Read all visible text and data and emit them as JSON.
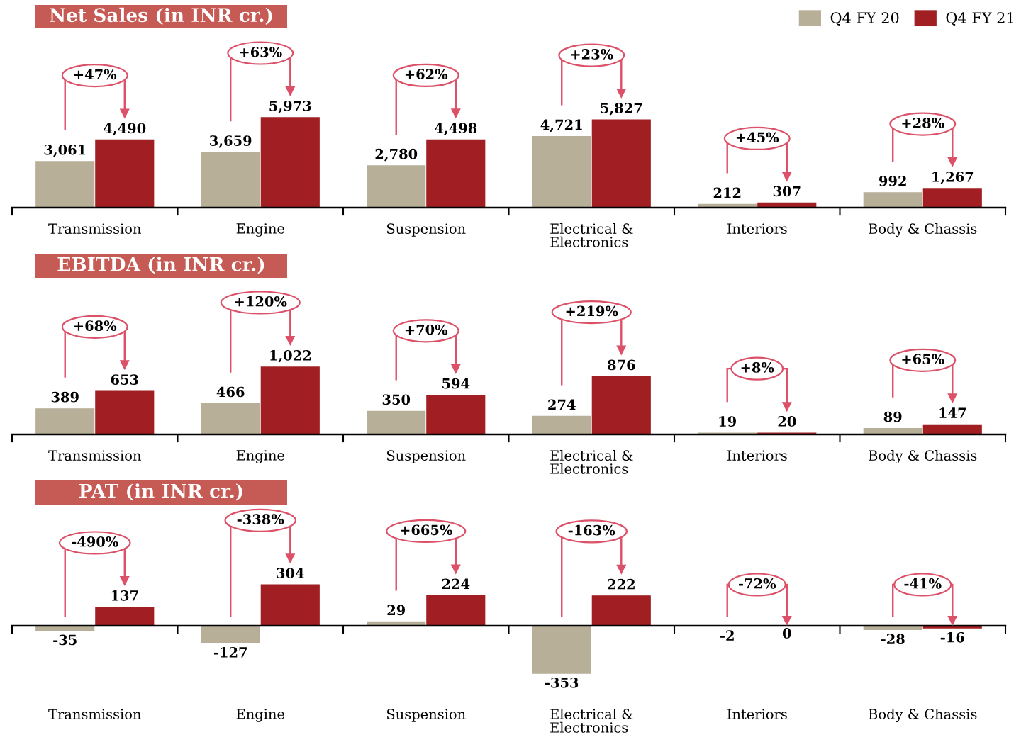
{
  "chart_data": [
    {
      "type": "bar",
      "title": "Net Sales (in INR cr.)",
      "categories": [
        "Transmission",
        "Engine",
        "Suspension",
        "Electrical &\nElectronics",
        "Interiors",
        "Body & Chassis"
      ],
      "series": [
        {
          "name": "Q4 FY 20",
          "color": "#b7af98",
          "values": [
            3061,
            3659,
            2780,
            4721,
            212,
            992
          ],
          "value_labels": [
            "3,061",
            "3,659",
            "2,780",
            "4,721",
            "212",
            "992"
          ]
        },
        {
          "name": "Q4 FY 21",
          "color": "#a11f22",
          "values": [
            4490,
            5973,
            4498,
            5827,
            307,
            1267
          ],
          "value_labels": [
            "4,490",
            "5,973",
            "4,498",
            "5,827",
            "307",
            "1,267"
          ]
        }
      ],
      "legend": "top right",
      "tick_labels": "x",
      "annotations": [
        "+47%",
        "+63%",
        "+62%",
        "+23%",
        "+45%",
        "+28%"
      ]
    },
    {
      "type": "bar",
      "title": "EBITDA (in INR cr.)",
      "categories": [
        "Transmission",
        "Engine",
        "Suspension",
        "Electrical &\nElectronics",
        "Interiors",
        "Body & Chassis"
      ],
      "series": [
        {
          "color": "#b7af98",
          "values": [
            389,
            466,
            350,
            274,
            19,
            89
          ],
          "value_labels": [
            "389",
            "466",
            "350",
            "274",
            "19",
            "89"
          ]
        },
        {
          "color": "#a11f22",
          "values": [
            653,
            1022,
            594,
            876,
            20,
            147
          ],
          "value_labels": [
            "653",
            "1,022",
            "594",
            "876",
            "20",
            "147"
          ]
        }
      ],
      "tick_labels": "x",
      "annotations": [
        "+68%",
        "+120%",
        "+70%",
        "+219%",
        "+8%",
        "+65%"
      ]
    },
    {
      "type": "bar",
      "title": "PAT (in INR cr.)",
      "categories": [
        "Transmission",
        "Engine",
        "Suspension",
        "Electrical &\nElectronics",
        "Interiors",
        "Body & Chassis"
      ],
      "series": [
        {
          "color": "#b7af98",
          "values": [
            -35,
            -127,
            29,
            -353,
            -2,
            -28
          ],
          "value_labels": [
            "-35",
            "-127",
            "29",
            "-353",
            "-2",
            "-28"
          ]
        },
        {
          "color": "#a11f22",
          "values": [
            137,
            304,
            224,
            222,
            0,
            -16
          ],
          "value_labels": [
            "137",
            "304",
            "224",
            "222",
            "0",
            "-16"
          ]
        }
      ],
      "tick_labels": "x",
      "annotations": [
        "-490%",
        "-338%",
        "+665%",
        "-163%",
        "-72%",
        "-41%"
      ]
    }
  ]
}
